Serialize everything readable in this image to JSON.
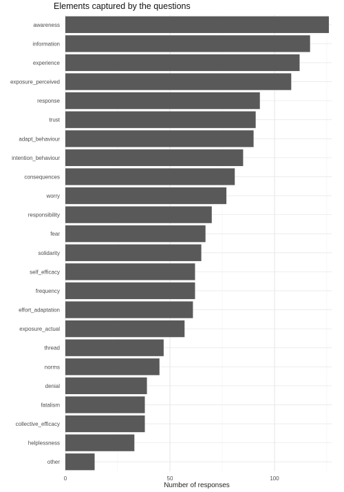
{
  "chart_data": {
    "type": "bar",
    "orientation": "horizontal",
    "title": "Elements captured by the questions",
    "xlabel": "Number of responses",
    "ylabel": "",
    "xlim": [
      0,
      127
    ],
    "xticks": [
      0,
      50,
      100
    ],
    "grid": true,
    "legend": "none",
    "bar_color": "#595959",
    "categories": [
      "awareness",
      "information",
      "experience",
      "exposure_perceived",
      "response",
      "trust",
      "adapt_behaviour",
      "intention_behaviour",
      "consequences",
      "worry",
      "responsibility",
      "fear",
      "solidarity",
      "self_efficacy",
      "frequency",
      "effort_adaptation",
      "exposure_actual",
      "thread",
      "norms",
      "denial",
      "fatalism",
      "collective_efficacy",
      "helplessness",
      "other"
    ],
    "values": [
      126,
      117,
      112,
      108,
      93,
      91,
      90,
      85,
      81,
      77,
      70,
      67,
      65,
      62,
      62,
      61,
      57,
      47,
      45,
      39,
      38,
      38,
      33,
      14
    ]
  }
}
